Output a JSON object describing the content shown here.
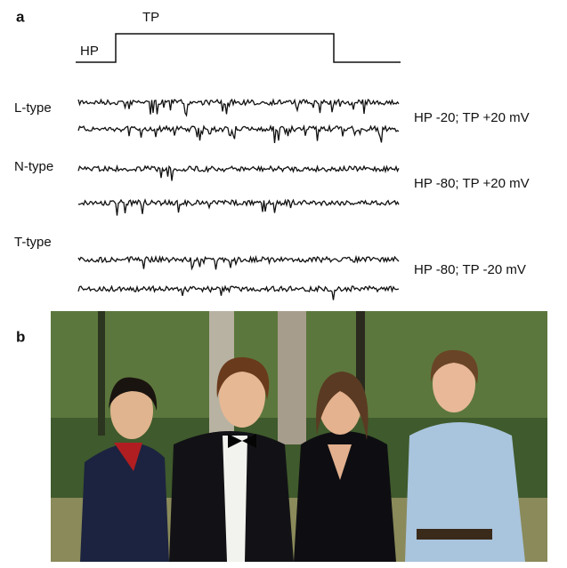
{
  "panel_a": {
    "label": "a",
    "protocol": {
      "tp": "TP",
      "hp": "HP"
    },
    "rows": [
      {
        "channel": "L-type",
        "condition": "HP -20; TP +20 mV"
      },
      {
        "channel": "N-type",
        "condition": "HP -80; TP +20 mV"
      },
      {
        "channel": "T-type",
        "condition": "HP -80; TP -20 mV"
      }
    ]
  },
  "panel_b": {
    "label": "b"
  }
}
